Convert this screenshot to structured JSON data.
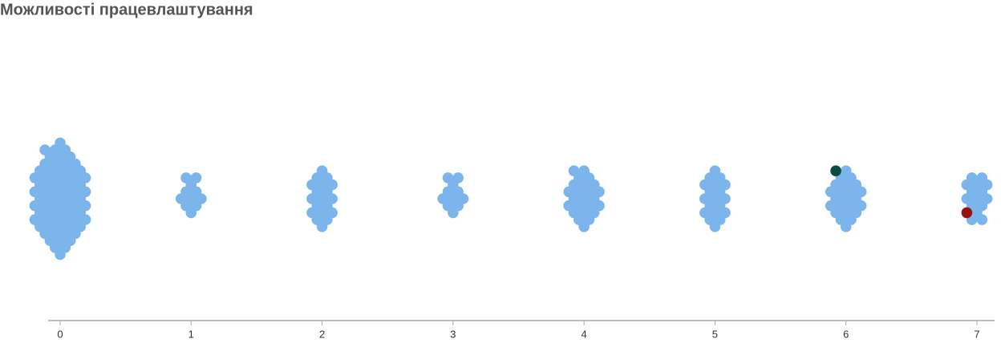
{
  "chart_data": {
    "type": "beeswarm",
    "title": "Можливості працевлаштування",
    "xlim": [
      0,
      7
    ],
    "xticks": [
      0,
      1,
      2,
      3,
      4,
      5,
      6,
      7
    ],
    "series": [
      {
        "color": "#7cb5ec",
        "x": [
          0,
          0,
          0,
          0,
          0,
          0,
          0,
          0,
          0,
          0,
          0,
          0,
          0,
          0,
          0,
          0,
          0,
          0,
          0,
          0,
          0,
          0,
          0,
          0,
          0,
          0,
          0,
          0,
          0,
          0,
          0,
          0,
          0,
          0,
          0,
          0,
          0,
          0,
          0,
          0,
          0,
          0,
          0,
          0,
          0,
          0,
          0,
          0,
          0,
          0,
          0,
          0,
          0,
          0,
          0,
          0,
          0,
          0,
          0,
          0,
          0,
          0,
          0,
          0,
          0,
          0,
          0,
          0,
          0,
          0,
          1,
          1,
          1,
          1,
          1,
          1,
          1,
          1,
          1,
          1,
          1,
          2,
          2,
          2,
          2,
          2,
          2,
          2,
          2,
          2,
          2,
          2,
          2,
          2,
          2,
          2,
          2,
          2,
          2,
          2,
          3,
          3,
          3,
          3,
          3,
          3,
          3,
          3,
          3,
          3,
          3,
          4,
          4,
          4,
          4,
          4,
          4,
          4,
          4,
          4,
          4,
          4,
          4,
          4,
          4,
          4,
          4,
          4,
          4,
          4,
          4,
          4,
          4,
          4,
          4,
          5,
          5,
          5,
          5,
          5,
          5,
          5,
          5,
          5,
          5,
          5,
          5,
          5,
          5,
          5,
          5,
          5,
          5,
          5,
          6,
          6,
          6,
          6,
          6,
          6,
          6,
          6,
          6,
          6,
          6,
          6,
          6,
          6,
          6,
          6,
          6,
          6,
          6,
          6,
          6,
          6,
          6,
          7,
          7,
          7,
          7,
          7,
          7,
          7,
          7,
          7,
          7,
          7,
          7,
          7,
          7,
          7
        ]
      },
      {
        "color": "#0e4a42",
        "x": [
          6
        ]
      },
      {
        "color": "#9a0f0f",
        "x": [
          7
        ]
      }
    ]
  }
}
